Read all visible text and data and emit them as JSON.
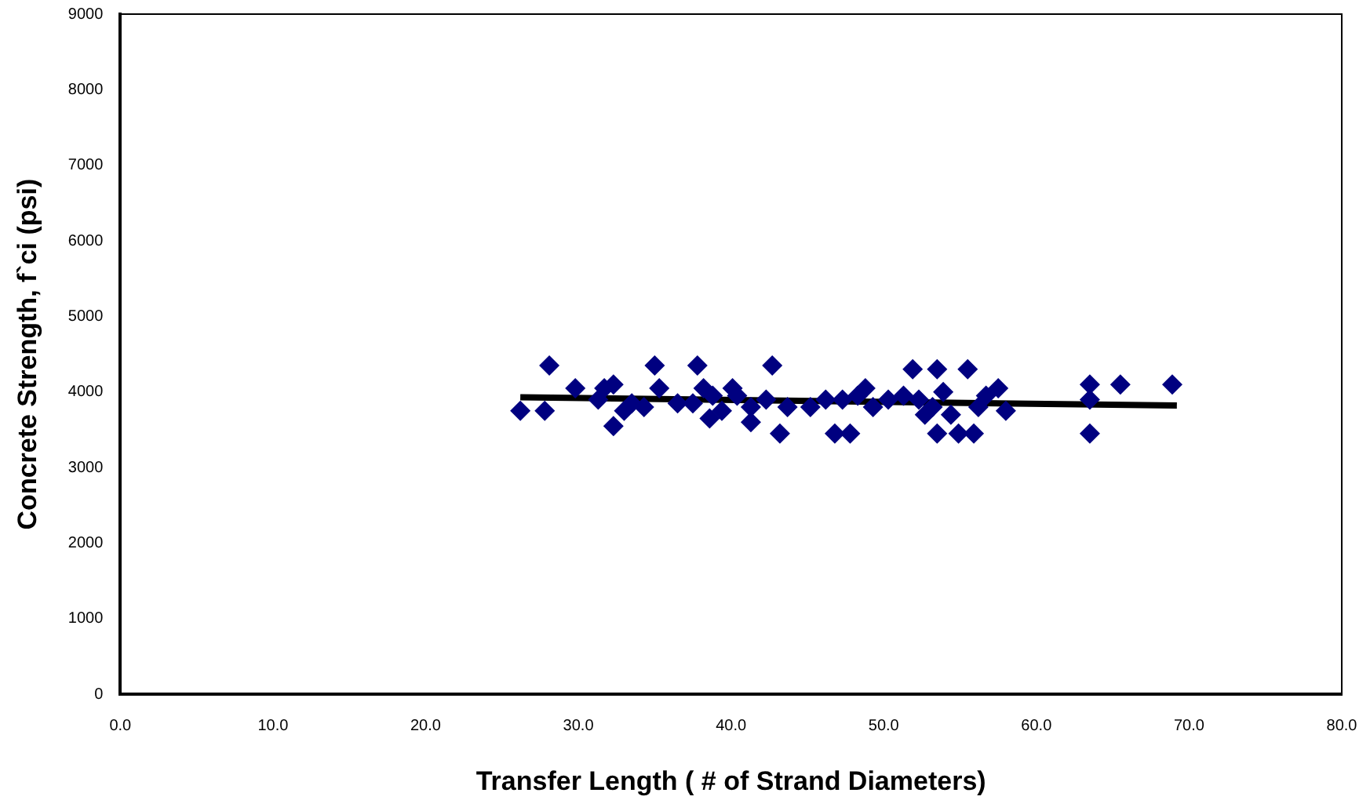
{
  "chart_data": {
    "type": "scatter",
    "xlabel": "Transfer Length ( # of Strand Diameters)",
    "ylabel": "Concrete Strength, f`ci (psi)",
    "xlim": [
      0,
      80
    ],
    "xticks": [
      {
        "value": 0,
        "label": "0.0"
      },
      {
        "value": 10,
        "label": "10.0"
      },
      {
        "value": 20,
        "label": "20.0"
      },
      {
        "value": 30,
        "label": "30.0"
      },
      {
        "value": 40,
        "label": "40.0"
      },
      {
        "value": 50,
        "label": "50.0"
      },
      {
        "value": 60,
        "label": "60.0"
      },
      {
        "value": 70,
        "label": "70.0"
      },
      {
        "value": 80,
        "label": "80.0"
      }
    ],
    "ylim": [
      0,
      9000
    ],
    "yticks": [
      0,
      1000,
      2000,
      3000,
      4000,
      5000,
      6000,
      7000,
      8000,
      9000
    ],
    "grid": false,
    "legend": false,
    "series": [
      {
        "color": "#000080",
        "marker": "diamond",
        "x": [
          26.2,
          27.8,
          28.1,
          29.8,
          31.3,
          31.7,
          32.3,
          32.3,
          33.0,
          33.5,
          34.3,
          35.0,
          35.3,
          36.5,
          37.5,
          37.8,
          38.2,
          38.6,
          38.8,
          39.4,
          40.1,
          40.4,
          41.3,
          41.3,
          42.3,
          42.7,
          43.2,
          43.7,
          45.2,
          46.2,
          46.8,
          47.3,
          47.8,
          48.3,
          48.8,
          49.3,
          50.3,
          51.3,
          51.9,
          52.3,
          52.7,
          53.2,
          53.5,
          53.5,
          53.9,
          54.4,
          54.9,
          55.5,
          55.9,
          56.2,
          56.7,
          57.5,
          58.0,
          63.5,
          63.5,
          63.5,
          65.5,
          68.9
        ],
        "values": [
          3750,
          3750,
          4350,
          4050,
          3900,
          4050,
          3550,
          4100,
          3750,
          3850,
          3800,
          4350,
          4050,
          3850,
          3850,
          4350,
          4050,
          3650,
          3950,
          3750,
          4050,
          3950,
          3600,
          3800,
          3900,
          4350,
          3450,
          3800,
          3800,
          3900,
          3450,
          3900,
          3450,
          3950,
          4050,
          3800,
          3900,
          3950,
          4300,
          3900,
          3700,
          3800,
          3450,
          4300,
          4000,
          3700,
          3450,
          4300,
          3450,
          3800,
          3950,
          4050,
          3750,
          3450,
          4100,
          3900,
          4100,
          4100
        ]
      },
      {
        "type": "line",
        "color": "#000000",
        "marker": "none",
        "line_style": "solid",
        "x": [
          26.2,
          69.2
        ],
        "values": [
          3930,
          3820
        ]
      }
    ]
  }
}
